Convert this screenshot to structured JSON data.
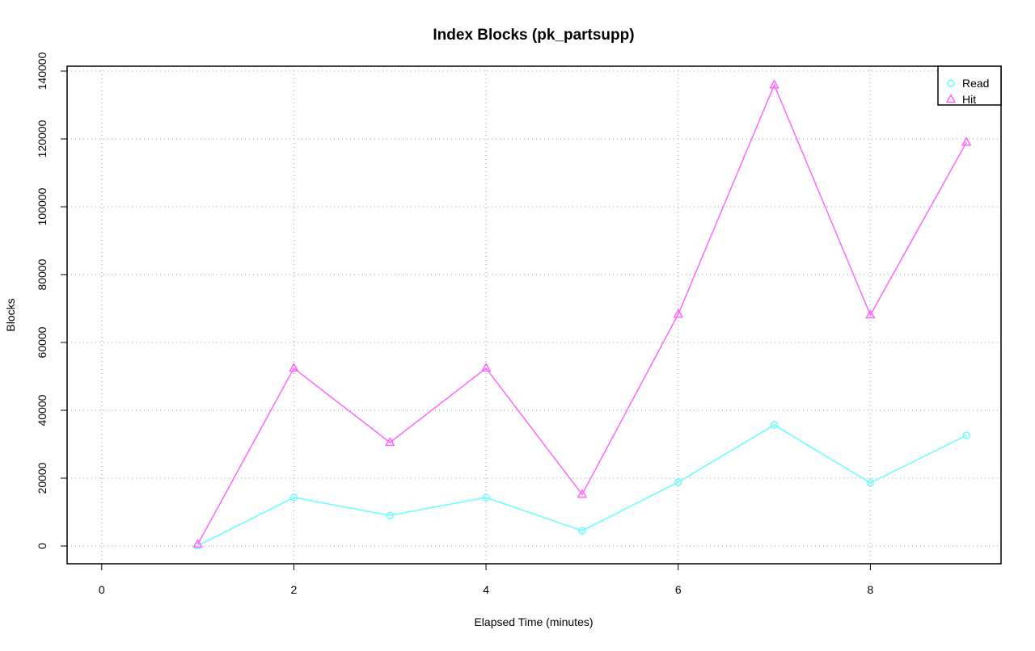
{
  "chart_data": {
    "type": "line",
    "title": "Index Blocks (pk_partsupp)",
    "x_label": "Elapsed Time (minutes)",
    "y_label": "Blocks",
    "x": [
      1,
      2,
      3,
      4,
      5,
      6,
      7,
      8,
      9
    ],
    "series": [
      {
        "name": "Read",
        "color": "#66ffff",
        "marker": "circle",
        "values": [
          100,
          14300,
          9000,
          14300,
          4500,
          18800,
          35700,
          18600,
          32600
        ]
      },
      {
        "name": "Hit",
        "color": "#ff66ff",
        "marker": "triangle",
        "values": [
          500,
          52400,
          30500,
          52400,
          15200,
          68300,
          135900,
          68100,
          119000
        ]
      }
    ],
    "xlim": [
      -0.36,
      9.36
    ],
    "xticks": [
      0,
      2,
      4,
      6,
      8
    ],
    "ylim": [
      -5240,
      141430
    ],
    "yticks": [
      0,
      20000,
      40000,
      60000,
      80000,
      100000,
      120000,
      140000
    ],
    "grid": true,
    "legend": "top-right"
  }
}
